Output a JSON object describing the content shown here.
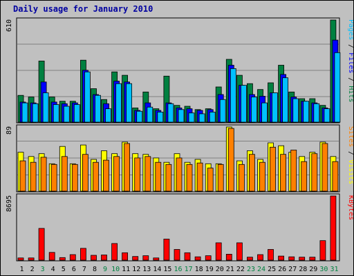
{
  "chart_data": {
    "type": "bar",
    "title": "Daily usage for January 2010",
    "categories": [
      "1",
      "2",
      "3",
      "4",
      "5",
      "6",
      "7",
      "8",
      "9",
      "10",
      "11",
      "12",
      "13",
      "14",
      "15",
      "16",
      "17",
      "18",
      "19",
      "20",
      "21",
      "22",
      "23",
      "24",
      "25",
      "26",
      "27",
      "28",
      "29",
      "30",
      "31"
    ],
    "weekend_categories": [
      "3",
      "9",
      "10",
      "16",
      "17",
      "23",
      "24",
      "30",
      "31"
    ],
    "colors": {
      "hits": "#008040",
      "files": "#0000ff",
      "pages": "#00c0ff",
      "visits": "#ffff00",
      "sites": "#ff8000",
      "kbytes": "#ff0000",
      "weekday_label": "#000000",
      "weekend_label": "#008040",
      "title": "#0000a0",
      "panel": "#c0c0c0",
      "grid": "#808080"
    },
    "panels": [
      {
        "id": "hits-files-pages",
        "max_label": "610",
        "max": 610,
        "legend": [
          {
            "text": "Pages",
            "color": "#00c0ff"
          },
          {
            "text": " / ",
            "color": "#000000"
          },
          {
            "text": "Files",
            "color": "#0000ff"
          },
          {
            "text": " / ",
            "color": "#000000"
          },
          {
            "text": "Hits",
            "color": "#008040"
          }
        ],
        "series": [
          {
            "name": "Hits",
            "color": "#008040",
            "values": [
              160,
              150,
              365,
              150,
              125,
              125,
              370,
              200,
              135,
              300,
              280,
              85,
              180,
              80,
              275,
              100,
              95,
              75,
              80,
              210,
              375,
              280,
              230,
              195,
              235,
              340,
              180,
              140,
              140,
              100,
              610
            ]
          },
          {
            "name": "Files",
            "color": "#0000ff",
            "values": [
              120,
              115,
              240,
              120,
              110,
              115,
              310,
              165,
              110,
              245,
              240,
              70,
              115,
              70,
              115,
              85,
              80,
              70,
              75,
              165,
              340,
              220,
              165,
              155,
              175,
              285,
              150,
              125,
              115,
              85,
              490
            ]
          },
          {
            "name": "Pages",
            "color": "#00c0ff",
            "values": [
              115,
              110,
              175,
              105,
              95,
              105,
              300,
              160,
              80,
              230,
              230,
              65,
              90,
              60,
              110,
              75,
              55,
              50,
              60,
              135,
              320,
              220,
              150,
              115,
              175,
              265,
              140,
              125,
              110,
              80,
              415
            ]
          }
        ]
      },
      {
        "id": "visits-sites",
        "max_label": "89",
        "max": 89,
        "legend": [
          {
            "text": "Sites",
            "color": "#ff8000"
          },
          {
            "text": " / ",
            "color": "#000000"
          },
          {
            "text": "Visits",
            "color": "#ffff00"
          }
        ],
        "series": [
          {
            "name": "Visits",
            "color": "#ffff00",
            "values": [
              54,
              48,
              52,
              38,
              62,
              38,
              64,
              44,
              56,
              52,
              68,
              52,
              51,
              46,
              40,
              52,
              40,
              44,
              38,
              38,
              89,
              42,
              56,
              44,
              67,
              63,
              54,
              48,
              54,
              68,
              48
            ]
          },
          {
            "name": "Sites",
            "color": "#ff8000",
            "values": [
              42,
              40,
              47,
              37,
              48,
              37,
              51,
              40,
              43,
              48,
              66,
              46,
              48,
              40,
              37,
              46,
              37,
              39,
              32,
              37,
              87,
              37,
              51,
              40,
              61,
              51,
              57,
              41,
              52,
              66,
              41
            ]
          }
        ]
      },
      {
        "id": "kbytes",
        "max_label": "8695",
        "max": 8695,
        "legend": [
          {
            "text": "KBytes",
            "color": "#ff0000"
          }
        ],
        "series": [
          {
            "name": "KBytes",
            "color": "#ff0000",
            "values": [
              300,
              300,
              4300,
              1050,
              350,
              750,
              1600,
              650,
              700,
              2250,
              1000,
              500,
              600,
              300,
              2850,
              1450,
              1000,
              450,
              600,
              2350,
              800,
              2350,
              400,
              750,
              1450,
              550,
              450,
              400,
              400,
              2650,
              8695
            ]
          }
        ]
      }
    ]
  }
}
